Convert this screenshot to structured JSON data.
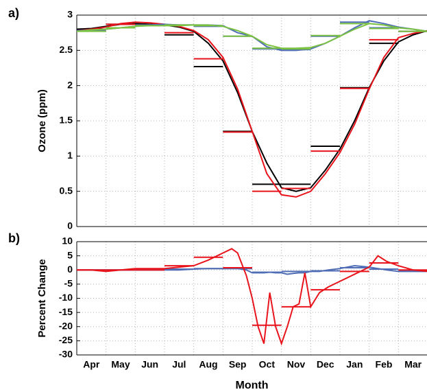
{
  "chart_data": [
    {
      "type": "line",
      "panel_label": "a)",
      "ylabel": "Ozone (ppm)",
      "ylim": [
        0,
        3
      ],
      "yticks": [
        0,
        0.5,
        1,
        1.5,
        2,
        2.5,
        3
      ],
      "xlim": [
        0,
        12
      ],
      "grid": true,
      "x": [
        0,
        0.5,
        1,
        1.5,
        2,
        2.5,
        3,
        3.5,
        4,
        4.5,
        5,
        5.5,
        6,
        6.5,
        7,
        7.5,
        8,
        8.5,
        9,
        9.5,
        10,
        10.5,
        11,
        11.5,
        12
      ],
      "series": [
        {
          "color": "#000000",
          "values": [
            2.8,
            2.81,
            2.84,
            2.87,
            2.88,
            2.87,
            2.86,
            2.83,
            2.77,
            2.6,
            2.35,
            1.9,
            1.35,
            0.9,
            0.55,
            0.5,
            0.55,
            0.8,
            1.1,
            1.5,
            1.97,
            2.35,
            2.62,
            2.72,
            2.78
          ],
          "monthly_means": [
            2.8,
            2.87,
            2.86,
            2.72,
            2.27,
            1.35,
            0.6,
            0.6,
            1.14,
            1.97,
            2.6,
            2.77
          ]
        },
        {
          "color": "#e8131b",
          "values": [
            2.78,
            2.8,
            2.83,
            2.88,
            2.9,
            2.89,
            2.87,
            2.84,
            2.78,
            2.65,
            2.4,
            1.95,
            1.35,
            0.75,
            0.45,
            0.42,
            0.5,
            0.75,
            1.05,
            1.45,
            1.95,
            2.4,
            2.68,
            2.74,
            2.78
          ],
          "monthly_means": [
            2.78,
            2.87,
            2.86,
            2.75,
            2.38,
            1.34,
            0.5,
            0.54,
            1.07,
            1.96,
            2.65,
            2.77
          ]
        },
        {
          "color": "#4f6db5",
          "values": [
            2.78,
            2.79,
            2.8,
            2.82,
            2.84,
            2.86,
            2.87,
            2.86,
            2.86,
            2.86,
            2.85,
            2.75,
            2.7,
            2.55,
            2.5,
            2.5,
            2.52,
            2.6,
            2.7,
            2.82,
            2.92,
            2.88,
            2.83,
            2.8,
            2.77
          ],
          "monthly_means": [
            2.78,
            2.82,
            2.86,
            2.86,
            2.84,
            2.7,
            2.52,
            2.51,
            2.7,
            2.9,
            2.82,
            2.77
          ]
        },
        {
          "color": "#7cc242",
          "values": [
            2.77,
            2.79,
            2.8,
            2.82,
            2.84,
            2.85,
            2.85,
            2.85,
            2.86,
            2.86,
            2.84,
            2.78,
            2.7,
            2.58,
            2.53,
            2.53,
            2.54,
            2.6,
            2.7,
            2.8,
            2.88,
            2.86,
            2.82,
            2.8,
            2.77
          ],
          "monthly_means": [
            2.77,
            2.82,
            2.85,
            2.86,
            2.85,
            2.7,
            2.53,
            2.52,
            2.71,
            2.88,
            2.81,
            2.77
          ]
        }
      ]
    },
    {
      "type": "line",
      "panel_label": "b)",
      "ylabel": "Percent Change",
      "xlabel": "Month",
      "ylim": [
        -30,
        10
      ],
      "yticks": [
        10,
        5,
        0,
        -5,
        -10,
        -15,
        -20,
        -25,
        -30
      ],
      "xlim": [
        0,
        12
      ],
      "grid": true,
      "categories": [
        "Apr",
        "May",
        "Jun",
        "Jul",
        "Aug",
        "Sep",
        "Oct",
        "Nov",
        "Dec",
        "Jan",
        "Feb",
        "Mar"
      ],
      "x": [
        0,
        0.5,
        1,
        1.5,
        2,
        2.5,
        3,
        3.5,
        4,
        4.5,
        5,
        5.3,
        5.5,
        5.8,
        6,
        6.2,
        6.4,
        6.6,
        6.8,
        7,
        7.2,
        7.4,
        7.6,
        7.8,
        8,
        8.3,
        8.6,
        9,
        9.5,
        10,
        10.3,
        10.6,
        11,
        11.5,
        12
      ],
      "series": [
        {
          "color": "#4f6db5",
          "values": [
            0,
            0,
            0,
            0,
            0,
            0,
            0,
            0,
            0.3,
            0.5,
            0.5,
            0.5,
            0.5,
            0,
            -1,
            -1,
            -1,
            -0.8,
            -1,
            -1,
            -1.5,
            -1.2,
            -1,
            -1,
            -0.5,
            -0.5,
            0,
            0.5,
            1.5,
            1,
            0.5,
            0,
            -0.5,
            -0.5,
            -0.5
          ],
          "monthly_means": [
            0,
            0,
            0,
            0.3,
            0.5,
            0.5,
            -0.8,
            -0.5,
            -0.3,
            0.8,
            0.3,
            -0.3
          ]
        },
        {
          "color": "#e8131b",
          "values": [
            0,
            0,
            -0.5,
            0,
            0.5,
            0.5,
            0.5,
            1,
            1.5,
            3.5,
            6,
            7.5,
            6,
            -2,
            -10,
            -20,
            -26,
            -8,
            -20,
            -26,
            -20,
            -13,
            -12,
            -1,
            -13,
            -8,
            -6,
            -4,
            -1.5,
            1,
            5,
            3,
            1.5,
            0,
            -0.5
          ],
          "monthly_means": [
            0,
            0,
            0,
            1.5,
            4.5,
            0.8,
            -19.5,
            -13,
            -7,
            -0.5,
            2.5,
            0
          ]
        }
      ]
    }
  ]
}
